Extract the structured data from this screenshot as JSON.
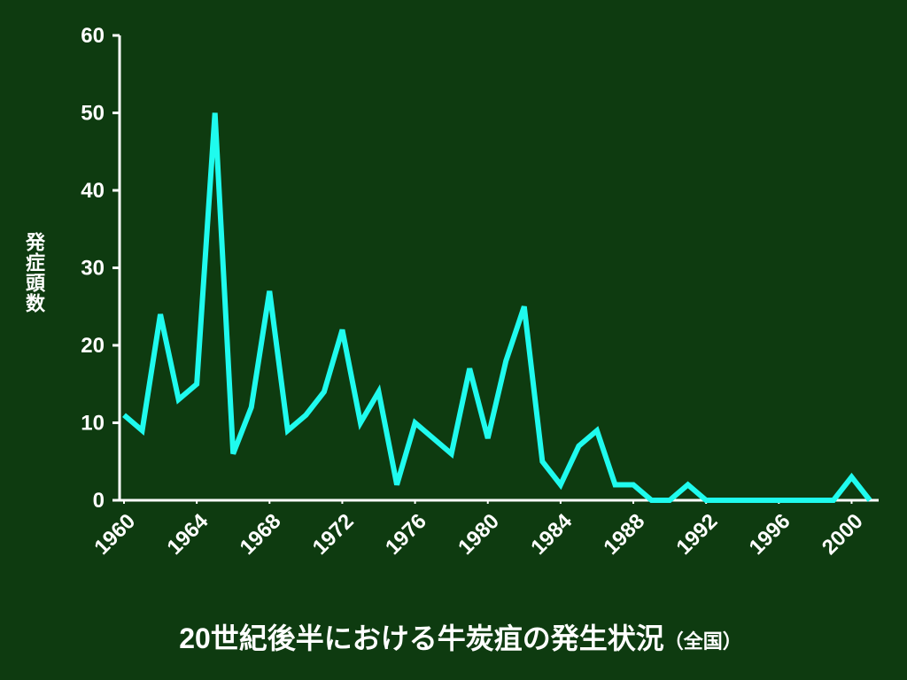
{
  "chart_data": {
    "type": "line",
    "title": "20世紀後半における牛炭疽の発生状況",
    "subtitle": "（全国）",
    "y_label": "発症頭数",
    "x": [
      1960,
      1961,
      1962,
      1963,
      1964,
      1965,
      1966,
      1967,
      1968,
      1969,
      1970,
      1971,
      1972,
      1973,
      1974,
      1975,
      1976,
      1977,
      1978,
      1979,
      1980,
      1981,
      1982,
      1983,
      1984,
      1985,
      1986,
      1987,
      1988,
      1989,
      1990,
      1991,
      1992,
      1993,
      1994,
      1995,
      1996,
      1997,
      1998,
      1999,
      2000,
      2001
    ],
    "series": [
      {
        "name": "発症頭数",
        "color": "#1ffbee",
        "values": [
          11,
          9,
          24,
          13,
          15,
          50,
          6,
          12,
          27,
          9,
          11,
          14,
          22,
          10,
          14,
          2,
          10,
          8,
          6,
          17,
          8,
          18,
          25,
          5,
          2,
          7,
          9,
          2,
          2,
          0,
          0,
          2,
          0,
          0,
          0,
          0,
          0,
          0,
          0,
          0,
          3,
          0
        ]
      }
    ],
    "xlim": [
      1960,
      2001
    ],
    "xticks": [
      1960,
      1964,
      1968,
      1972,
      1976,
      1980,
      1984,
      1988,
      1992,
      1996,
      2000
    ],
    "ylim": [
      0,
      60
    ],
    "yticks": [
      0,
      10,
      20,
      30,
      40,
      50,
      60
    ]
  }
}
